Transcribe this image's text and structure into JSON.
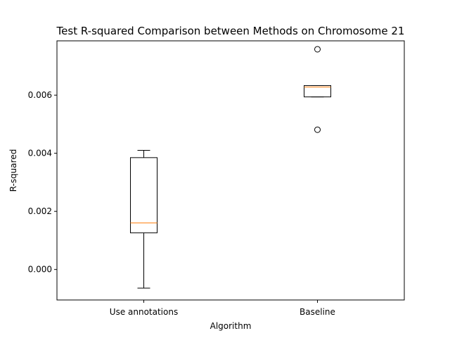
{
  "chart_data": {
    "type": "box",
    "title": "Test R-squared Comparison between Methods on Chromosome 21",
    "xlabel": "Algorithm",
    "ylabel": "R-squared",
    "categories": [
      "Use annotations",
      "Baseline"
    ],
    "ylim": [
      -0.00105,
      0.00787
    ],
    "yticks": [
      0.0,
      0.002,
      0.004,
      0.006
    ],
    "ytick_labels": [
      "0.000",
      "0.002",
      "0.004",
      "0.006"
    ],
    "grid": false,
    "boxes": [
      {
        "label": "Use annotations",
        "whisker_low": -0.00064,
        "q1": 0.00126,
        "median": 0.0016,
        "q3": 0.00385,
        "whisker_high": 0.0041,
        "outliers": []
      },
      {
        "label": "Baseline",
        "whisker_low": 0.00594,
        "q1": 0.00594,
        "median": 0.00628,
        "q3": 0.00633,
        "whisker_high": 0.00633,
        "outliers": [
          0.00758,
          0.00481
        ]
      }
    ],
    "colors": {
      "box": "#000000",
      "median": "#ff7f0e",
      "outlier": "#000000"
    }
  }
}
